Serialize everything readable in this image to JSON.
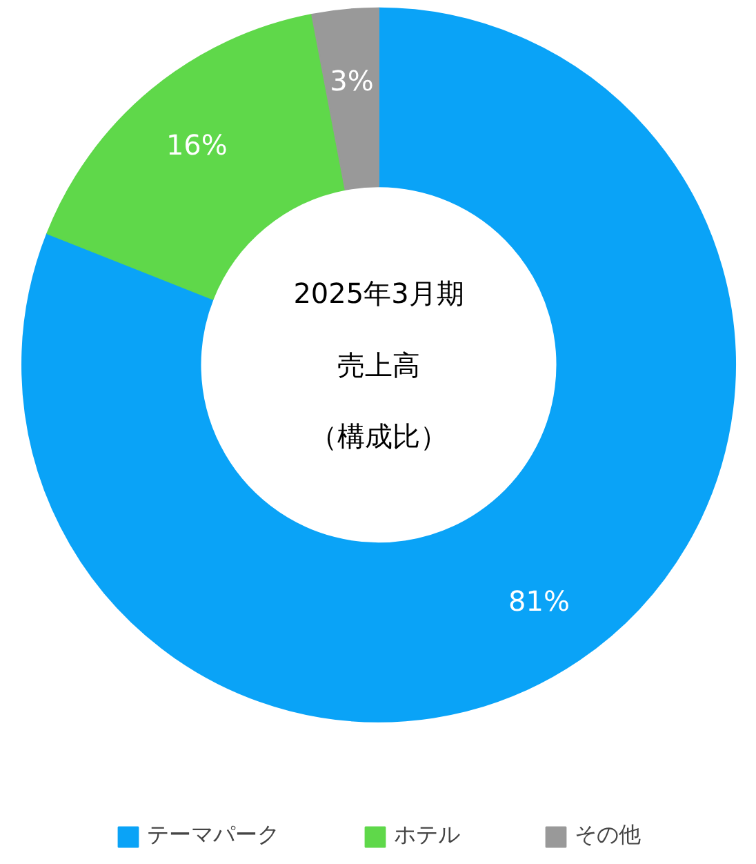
{
  "chart_data": {
    "type": "donut",
    "title": "2025年3月期",
    "subtitle": "売上高",
    "annotations": [
      "（構成比）"
    ],
    "categories": [
      "テーマパーク",
      "ホテル",
      "その他"
    ],
    "values": [
      81,
      16,
      3
    ],
    "colors": [
      "#0aa3f7",
      "#5fd84a",
      "#999999"
    ],
    "value_labels": [
      "81%",
      "16%",
      "3%"
    ],
    "legend": "bottom"
  }
}
